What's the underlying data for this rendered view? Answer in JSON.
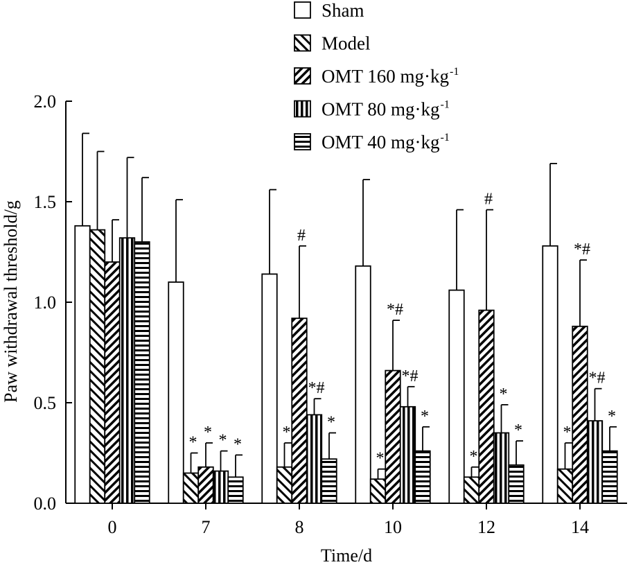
{
  "chart_data": {
    "type": "bar",
    "xlabel": "Time/d",
    "ylabel": "Paw withdrawal threshold/g",
    "ylim": [
      0,
      2.0
    ],
    "yticks": [
      "0.0",
      "0.5",
      "1.0",
      "1.5",
      "2.0"
    ],
    "categories": [
      "0",
      "7",
      "8",
      "10",
      "12",
      "14"
    ],
    "series": [
      {
        "name": "Sham",
        "unit": "",
        "pattern": "solid-white",
        "values": [
          1.38,
          1.1,
          1.14,
          1.18,
          1.06,
          1.28
        ],
        "errors": [
          0.46,
          0.41,
          0.42,
          0.43,
          0.4,
          0.41
        ],
        "sig": [
          "",
          "",
          "",
          "",
          "",
          ""
        ]
      },
      {
        "name": "Model",
        "unit": "",
        "pattern": "diag-back",
        "values": [
          1.36,
          0.15,
          0.18,
          0.12,
          0.13,
          0.17
        ],
        "errors": [
          0.39,
          0.1,
          0.12,
          0.05,
          0.05,
          0.13
        ],
        "sig": [
          "",
          "*",
          "*",
          "*",
          "*",
          "*"
        ]
      },
      {
        "name": "OMT 160 mg·kg",
        "unit": "-1",
        "pattern": "diag-fwd",
        "values": [
          1.2,
          0.18,
          0.92,
          0.66,
          0.96,
          0.88
        ],
        "errors": [
          0.21,
          0.12,
          0.36,
          0.25,
          0.5,
          0.33
        ],
        "sig": [
          "",
          "*",
          "#",
          "*#",
          "#",
          "*#"
        ]
      },
      {
        "name": "OMT 80 mg·kg",
        "unit": "-1",
        "pattern": "vertical",
        "values": [
          1.32,
          0.16,
          0.44,
          0.48,
          0.35,
          0.41
        ],
        "errors": [
          0.4,
          0.1,
          0.08,
          0.1,
          0.14,
          0.16
        ],
        "sig": [
          "",
          "*",
          "*#",
          "*#",
          "*",
          "*#"
        ]
      },
      {
        "name": "OMT 40 mg·kg",
        "unit": "-1",
        "pattern": "horizontal",
        "values": [
          1.3,
          0.13,
          0.22,
          0.26,
          0.19,
          0.26
        ],
        "errors": [
          0.32,
          0.11,
          0.13,
          0.12,
          0.12,
          0.12
        ],
        "sig": [
          "",
          "*",
          "*",
          "*",
          "*",
          "*"
        ]
      }
    ]
  }
}
